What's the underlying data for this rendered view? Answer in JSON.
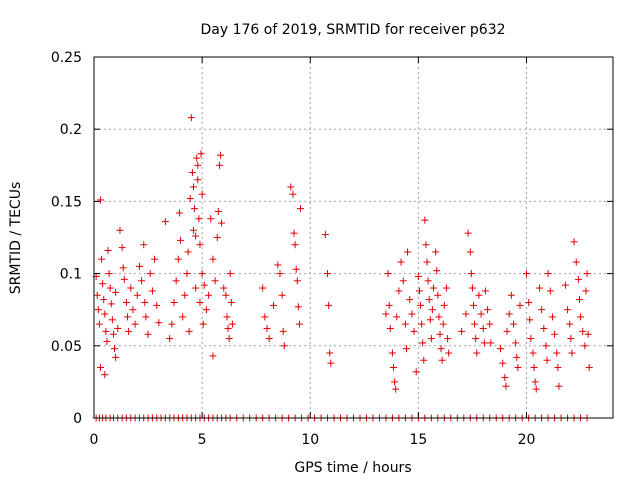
{
  "chart_data": {
    "type": "scatter",
    "title": "Day 176 of 2019, SRMTID for receiver p632",
    "xlabel": "GPS time / hours",
    "ylabel": "SRMTID / TECUs",
    "xlim": [
      0,
      24
    ],
    "ylim": [
      0,
      0.25
    ],
    "xticks": [
      0,
      5,
      10,
      15,
      20
    ],
    "xtick_labels": [
      "0",
      "5",
      "10",
      "15",
      "20"
    ],
    "yticks": [
      0,
      0.05,
      0.1,
      0.15,
      0.2,
      0.25
    ],
    "ytick_labels": [
      "0",
      "0.05",
      "0.1",
      "0.15",
      "0.2",
      "0.25"
    ],
    "grid": true,
    "marker": "+",
    "color": "#e00000",
    "series": [
      {
        "name": "SRMTID",
        "points": [
          [
            0.1,
            0.0
          ],
          [
            0.25,
            0.0
          ],
          [
            0.4,
            0.0
          ],
          [
            0.55,
            0.0
          ],
          [
            0.75,
            0.0
          ],
          [
            0.9,
            0.0
          ],
          [
            1.1,
            0.0
          ],
          [
            1.3,
            0.0
          ],
          [
            1.5,
            0.0
          ],
          [
            1.7,
            0.0
          ],
          [
            1.9,
            0.0
          ],
          [
            2.1,
            0.0
          ],
          [
            2.3,
            0.0
          ],
          [
            2.5,
            0.0
          ],
          [
            2.7,
            0.0
          ],
          [
            2.9,
            0.0
          ],
          [
            3.1,
            0.0
          ],
          [
            3.3,
            0.0
          ],
          [
            3.5,
            0.0
          ],
          [
            3.7,
            0.0
          ],
          [
            3.9,
            0.0
          ],
          [
            4.1,
            0.0
          ],
          [
            4.3,
            0.0
          ],
          [
            4.5,
            0.0
          ],
          [
            4.7,
            0.0
          ],
          [
            4.9,
            0.0
          ],
          [
            5.1,
            0.0
          ],
          [
            5.3,
            0.0
          ],
          [
            5.5,
            0.0
          ],
          [
            5.7,
            0.0
          ],
          [
            5.9,
            0.0
          ],
          [
            6.1,
            0.0
          ],
          [
            6.3,
            0.0
          ],
          [
            6.6,
            0.0
          ],
          [
            6.9,
            0.0
          ],
          [
            7.2,
            0.0
          ],
          [
            7.5,
            0.0
          ],
          [
            7.8,
            0.0
          ],
          [
            8.1,
            0.0
          ],
          [
            8.4,
            0.0
          ],
          [
            8.7,
            0.0
          ],
          [
            9.0,
            0.0
          ],
          [
            9.3,
            0.0
          ],
          [
            9.6,
            0.0
          ],
          [
            9.9,
            0.0
          ],
          [
            10.2,
            0.0
          ],
          [
            10.5,
            0.0
          ],
          [
            10.8,
            0.0
          ],
          [
            11.1,
            0.0
          ],
          [
            11.4,
            0.0
          ],
          [
            11.7,
            0.0
          ],
          [
            12.0,
            0.0
          ],
          [
            12.3,
            0.0
          ],
          [
            12.6,
            0.0
          ],
          [
            12.9,
            0.0
          ],
          [
            13.2,
            0.0
          ],
          [
            13.5,
            0.0
          ],
          [
            13.8,
            0.0
          ],
          [
            14.1,
            0.0
          ],
          [
            14.4,
            0.0
          ],
          [
            14.7,
            0.0
          ],
          [
            15.0,
            0.0
          ],
          [
            15.3,
            0.0
          ],
          [
            15.6,
            0.0
          ],
          [
            15.9,
            0.0
          ],
          [
            16.2,
            0.0
          ],
          [
            16.5,
            0.0
          ],
          [
            16.8,
            0.0
          ],
          [
            17.1,
            0.0
          ],
          [
            17.4,
            0.0
          ],
          [
            17.7,
            0.0
          ],
          [
            18.0,
            0.0
          ],
          [
            18.3,
            0.0
          ],
          [
            18.6,
            0.0
          ],
          [
            18.9,
            0.0
          ],
          [
            19.2,
            0.0
          ],
          [
            19.5,
            0.0
          ],
          [
            19.8,
            0.0
          ],
          [
            20.1,
            0.0
          ],
          [
            20.4,
            0.0
          ],
          [
            20.7,
            0.0
          ],
          [
            21.0,
            0.0
          ],
          [
            21.3,
            0.0
          ],
          [
            21.6,
            0.0
          ],
          [
            21.9,
            0.0
          ],
          [
            22.2,
            0.0
          ],
          [
            22.5,
            0.0
          ],
          [
            22.8,
            0.0
          ],
          [
            0.1,
            0.098
          ],
          [
            0.15,
            0.085
          ],
          [
            0.2,
            0.075
          ],
          [
            0.25,
            0.065
          ],
          [
            0.3,
            0.151
          ],
          [
            0.3,
            0.035
          ],
          [
            0.35,
            0.11
          ],
          [
            0.4,
            0.093
          ],
          [
            0.45,
            0.082
          ],
          [
            0.5,
            0.072
          ],
          [
            0.5,
            0.03
          ],
          [
            0.55,
            0.06
          ],
          [
            0.6,
            0.053
          ],
          [
            0.65,
            0.116
          ],
          [
            0.7,
            0.1
          ],
          [
            0.75,
            0.09
          ],
          [
            0.8,
            0.079
          ],
          [
            0.85,
            0.068
          ],
          [
            0.9,
            0.058
          ],
          [
            0.95,
            0.048
          ],
          [
            1.0,
            0.087
          ],
          [
            1.0,
            0.042
          ],
          [
            1.1,
            0.062
          ],
          [
            1.2,
            0.13
          ],
          [
            1.3,
            0.118
          ],
          [
            1.35,
            0.104
          ],
          [
            1.4,
            0.096
          ],
          [
            1.5,
            0.08
          ],
          [
            1.55,
            0.07
          ],
          [
            1.6,
            0.06
          ],
          [
            1.7,
            0.09
          ],
          [
            1.8,
            0.075
          ],
          [
            1.9,
            0.065
          ],
          [
            2.0,
            0.085
          ],
          [
            2.1,
            0.105
          ],
          [
            2.2,
            0.095
          ],
          [
            2.3,
            0.12
          ],
          [
            2.35,
            0.08
          ],
          [
            2.4,
            0.07
          ],
          [
            2.5,
            0.058
          ],
          [
            2.6,
            0.1
          ],
          [
            2.7,
            0.088
          ],
          [
            2.8,
            0.11
          ],
          [
            2.9,
            0.078
          ],
          [
            3.0,
            0.066
          ],
          [
            3.3,
            0.136
          ],
          [
            3.5,
            0.055
          ],
          [
            3.6,
            0.065
          ],
          [
            3.7,
            0.08
          ],
          [
            3.8,
            0.095
          ],
          [
            3.9,
            0.11
          ],
          [
            3.95,
            0.142
          ],
          [
            4.0,
            0.123
          ],
          [
            4.1,
            0.07
          ],
          [
            4.2,
            0.085
          ],
          [
            4.3,
            0.1
          ],
          [
            4.35,
            0.115
          ],
          [
            4.4,
            0.06
          ],
          [
            4.45,
            0.152
          ],
          [
            4.5,
            0.208
          ],
          [
            4.55,
            0.17
          ],
          [
            4.6,
            0.16
          ],
          [
            4.6,
            0.13
          ],
          [
            4.65,
            0.145
          ],
          [
            4.7,
            0.126
          ],
          [
            4.7,
            0.09
          ],
          [
            4.75,
            0.18
          ],
          [
            4.8,
            0.175
          ],
          [
            4.8,
            0.165
          ],
          [
            4.85,
            0.138
          ],
          [
            4.9,
            0.12
          ],
          [
            4.9,
            0.08
          ],
          [
            4.95,
            0.183
          ],
          [
            5.0,
            0.155
          ],
          [
            5.0,
            0.1
          ],
          [
            5.05,
            0.065
          ],
          [
            5.1,
            0.092
          ],
          [
            5.2,
            0.075
          ],
          [
            5.3,
            0.085
          ],
          [
            5.4,
            0.138
          ],
          [
            5.5,
            0.11
          ],
          [
            5.5,
            0.043
          ],
          [
            5.6,
            0.095
          ],
          [
            5.7,
            0.125
          ],
          [
            5.75,
            0.143
          ],
          [
            5.8,
            0.175
          ],
          [
            5.85,
            0.182
          ],
          [
            5.9,
            0.135
          ],
          [
            6.0,
            0.09
          ],
          [
            6.1,
            0.085
          ],
          [
            6.15,
            0.07
          ],
          [
            6.2,
            0.062
          ],
          [
            6.25,
            0.055
          ],
          [
            6.3,
            0.1
          ],
          [
            6.35,
            0.08
          ],
          [
            6.4,
            0.065
          ],
          [
            7.8,
            0.09
          ],
          [
            7.9,
            0.07
          ],
          [
            8.0,
            0.062
          ],
          [
            8.1,
            0.055
          ],
          [
            8.3,
            0.078
          ],
          [
            8.5,
            0.106
          ],
          [
            8.6,
            0.1
          ],
          [
            8.7,
            0.085
          ],
          [
            8.75,
            0.06
          ],
          [
            8.8,
            0.05
          ],
          [
            9.1,
            0.16
          ],
          [
            9.2,
            0.155
          ],
          [
            9.25,
            0.128
          ],
          [
            9.3,
            0.12
          ],
          [
            9.35,
            0.103
          ],
          [
            9.4,
            0.095
          ],
          [
            9.45,
            0.077
          ],
          [
            9.5,
            0.065
          ],
          [
            9.55,
            0.145
          ],
          [
            10.7,
            0.127
          ],
          [
            10.8,
            0.1
          ],
          [
            10.85,
            0.078
          ],
          [
            10.9,
            0.045
          ],
          [
            10.95,
            0.038
          ],
          [
            13.5,
            0.072
          ],
          [
            13.6,
            0.1
          ],
          [
            13.65,
            0.078
          ],
          [
            13.7,
            0.062
          ],
          [
            13.8,
            0.045
          ],
          [
            13.85,
            0.035
          ],
          [
            13.9,
            0.025
          ],
          [
            13.95,
            0.02
          ],
          [
            14.0,
            0.07
          ],
          [
            14.1,
            0.088
          ],
          [
            14.2,
            0.108
          ],
          [
            14.3,
            0.095
          ],
          [
            14.4,
            0.065
          ],
          [
            14.45,
            0.048
          ],
          [
            14.5,
            0.115
          ],
          [
            14.6,
            0.082
          ],
          [
            14.7,
            0.072
          ],
          [
            14.8,
            0.06
          ],
          [
            14.9,
            0.032
          ],
          [
            15.0,
            0.098
          ],
          [
            15.05,
            0.088
          ],
          [
            15.1,
            0.078
          ],
          [
            15.15,
            0.065
          ],
          [
            15.2,
            0.052
          ],
          [
            15.25,
            0.04
          ],
          [
            15.3,
            0.137
          ],
          [
            15.35,
            0.12
          ],
          [
            15.4,
            0.108
          ],
          [
            15.45,
            0.095
          ],
          [
            15.5,
            0.082
          ],
          [
            15.55,
            0.068
          ],
          [
            15.6,
            0.055
          ],
          [
            15.65,
            0.075
          ],
          [
            15.7,
            0.09
          ],
          [
            15.8,
            0.115
          ],
          [
            15.85,
            0.102
          ],
          [
            15.9,
            0.085
          ],
          [
            15.95,
            0.07
          ],
          [
            16.0,
            0.058
          ],
          [
            16.05,
            0.048
          ],
          [
            16.1,
            0.04
          ],
          [
            16.15,
            0.065
          ],
          [
            16.2,
            0.078
          ],
          [
            16.3,
            0.09
          ],
          [
            16.35,
            0.055
          ],
          [
            16.4,
            0.045
          ],
          [
            17.0,
            0.06
          ],
          [
            17.2,
            0.072
          ],
          [
            17.3,
            0.128
          ],
          [
            17.4,
            0.115
          ],
          [
            17.45,
            0.1
          ],
          [
            17.5,
            0.09
          ],
          [
            17.55,
            0.078
          ],
          [
            17.6,
            0.065
          ],
          [
            17.65,
            0.055
          ],
          [
            17.7,
            0.045
          ],
          [
            17.8,
            0.085
          ],
          [
            17.9,
            0.072
          ],
          [
            18.0,
            0.062
          ],
          [
            18.05,
            0.052
          ],
          [
            18.1,
            0.088
          ],
          [
            18.2,
            0.075
          ],
          [
            18.3,
            0.065
          ],
          [
            18.35,
            0.052
          ],
          [
            18.8,
            0.048
          ],
          [
            18.9,
            0.038
          ],
          [
            19.0,
            0.028
          ],
          [
            19.05,
            0.022
          ],
          [
            19.1,
            0.06
          ],
          [
            19.2,
            0.072
          ],
          [
            19.3,
            0.085
          ],
          [
            19.4,
            0.065
          ],
          [
            19.5,
            0.052
          ],
          [
            19.55,
            0.042
          ],
          [
            19.6,
            0.035
          ],
          [
            19.7,
            0.078
          ],
          [
            20.0,
            0.1
          ],
          [
            20.1,
            0.08
          ],
          [
            20.15,
            0.068
          ],
          [
            20.2,
            0.055
          ],
          [
            20.3,
            0.045
          ],
          [
            20.35,
            0.035
          ],
          [
            20.4,
            0.025
          ],
          [
            20.45,
            0.02
          ],
          [
            20.6,
            0.09
          ],
          [
            20.7,
            0.075
          ],
          [
            20.8,
            0.062
          ],
          [
            20.9,
            0.05
          ],
          [
            20.95,
            0.04
          ],
          [
            21.0,
            0.1
          ],
          [
            21.1,
            0.088
          ],
          [
            21.2,
            0.07
          ],
          [
            21.3,
            0.058
          ],
          [
            21.4,
            0.045
          ],
          [
            21.45,
            0.035
          ],
          [
            21.5,
            0.022
          ],
          [
            21.8,
            0.092
          ],
          [
            21.9,
            0.075
          ],
          [
            22.0,
            0.065
          ],
          [
            22.05,
            0.055
          ],
          [
            22.1,
            0.045
          ],
          [
            22.2,
            0.122
          ],
          [
            22.3,
            0.108
          ],
          [
            22.4,
            0.096
          ],
          [
            22.45,
            0.082
          ],
          [
            22.5,
            0.07
          ],
          [
            22.6,
            0.06
          ],
          [
            22.7,
            0.05
          ],
          [
            22.75,
            0.088
          ],
          [
            22.8,
            0.1
          ],
          [
            22.85,
            0.058
          ],
          [
            22.9,
            0.035
          ]
        ]
      }
    ]
  }
}
